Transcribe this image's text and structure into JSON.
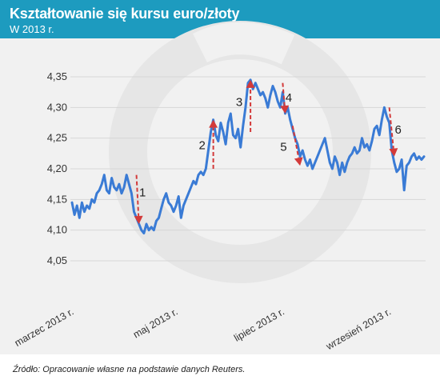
{
  "header": {
    "title": "Kształtowanie się kursu euro/złoty",
    "subtitle": "W 2013 r."
  },
  "source": "Źródło: Opracowanie własne na podstawie danych Reuters.",
  "colors": {
    "header_bg": "#1d9bbf",
    "line": "#3a7bd5",
    "arrow": "#d33a3a",
    "plot_bg": "#f1f1f1",
    "watermark": "#e3e3e3"
  },
  "chart_data": {
    "type": "line",
    "title": "Kształtowanie się kursu euro/złoty",
    "subtitle": "W 2013 r.",
    "ylim": [
      4.05,
      4.35
    ],
    "yticks": [
      "4,05",
      "4,10",
      "4,15",
      "4,20",
      "4,25",
      "4,30",
      "4,35"
    ],
    "ytick_values": [
      4.05,
      4.1,
      4.15,
      4.2,
      4.25,
      4.3,
      4.35
    ],
    "xticks": [
      {
        "label": "marzec 2013 r.",
        "index": 0
      },
      {
        "label": "maj 2013 r.",
        "index": 42
      },
      {
        "label": "lipiec 2013 r.",
        "index": 85
      },
      {
        "label": "wrzesień 2013 r.",
        "index": 128
      }
    ],
    "grid": true,
    "series": [
      {
        "values": [
          4.145,
          4.125,
          4.14,
          4.12,
          4.145,
          4.13,
          4.14,
          4.135,
          4.15,
          4.145,
          4.16,
          4.165,
          4.175,
          4.19,
          4.165,
          4.16,
          4.185,
          4.17,
          4.165,
          4.175,
          4.16,
          4.17,
          4.19,
          4.175,
          4.16,
          4.13,
          4.12,
          4.11,
          4.1,
          4.095,
          4.11,
          4.1,
          4.105,
          4.1,
          4.115,
          4.12,
          4.135,
          4.15,
          4.16,
          4.145,
          4.14,
          4.13,
          4.14,
          4.155,
          4.12,
          4.14,
          4.15,
          4.16,
          4.17,
          4.18,
          4.175,
          4.19,
          4.195,
          4.19,
          4.2,
          4.23,
          4.26,
          4.28,
          4.255,
          4.245,
          4.275,
          4.26,
          4.24,
          4.275,
          4.29,
          4.255,
          4.25,
          4.265,
          4.235,
          4.27,
          4.3,
          4.34,
          4.345,
          4.33,
          4.34,
          4.33,
          4.32,
          4.325,
          4.315,
          4.3,
          4.32,
          4.335,
          4.325,
          4.31,
          4.3,
          4.325,
          4.29,
          4.3,
          4.28,
          4.265,
          4.25,
          4.24,
          4.22,
          4.23,
          4.215,
          4.205,
          4.215,
          4.2,
          4.21,
          4.22,
          4.23,
          4.24,
          4.25,
          4.23,
          4.21,
          4.2,
          4.22,
          4.21,
          4.19,
          4.21,
          4.195,
          4.21,
          4.22,
          4.225,
          4.235,
          4.225,
          4.23,
          4.25,
          4.235,
          4.24,
          4.23,
          4.245,
          4.265,
          4.27,
          4.255,
          4.28,
          4.3,
          4.285,
          4.275,
          4.23,
          4.21,
          4.195,
          4.2,
          4.215,
          4.165,
          4.205,
          4.21,
          4.22,
          4.225,
          4.215,
          4.22,
          4.215,
          4.22
        ]
      }
    ],
    "annotations": [
      {
        "label": "1",
        "from_index": 26,
        "from_value": 4.19,
        "to_index": 27,
        "to_value": 4.11
      },
      {
        "label": "2",
        "from_index": 57,
        "from_value": 4.2,
        "to_index": 57,
        "to_value": 4.28
      },
      {
        "label": "3",
        "from_index": 72,
        "from_value": 4.26,
        "to_index": 72,
        "to_value": 4.345
      },
      {
        "label": "4",
        "from_index": 85,
        "from_value": 4.34,
        "to_index": 86,
        "to_value": 4.29
      },
      {
        "label": "5",
        "from_index": 89,
        "from_value": 4.27,
        "to_index": 92,
        "to_value": 4.205
      },
      {
        "label": "6",
        "from_index": 128,
        "from_value": 4.3,
        "to_index": 130,
        "to_value": 4.22
      }
    ]
  }
}
